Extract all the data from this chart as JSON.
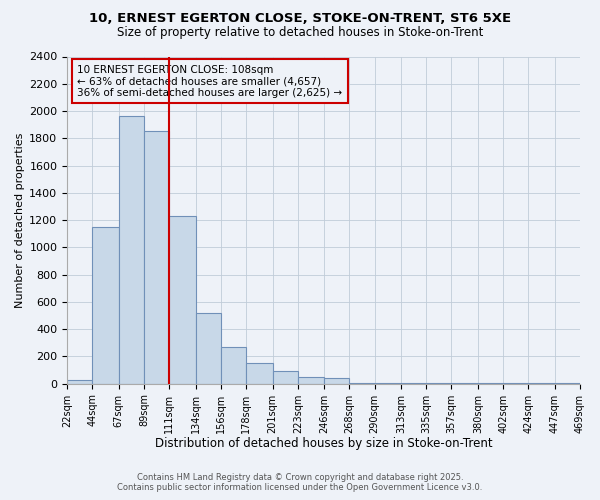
{
  "title1": "10, ERNEST EGERTON CLOSE, STOKE-ON-TRENT, ST6 5XE",
  "title2": "Size of property relative to detached houses in Stoke-on-Trent",
  "xlabel": "Distribution of detached houses by size in Stoke-on-Trent",
  "ylabel": "Number of detached properties",
  "bin_labels": [
    "22sqm",
    "44sqm",
    "67sqm",
    "89sqm",
    "111sqm",
    "134sqm",
    "156sqm",
    "178sqm",
    "201sqm",
    "223sqm",
    "246sqm",
    "268sqm",
    "290sqm",
    "313sqm",
    "335sqm",
    "357sqm",
    "380sqm",
    "402sqm",
    "424sqm",
    "447sqm",
    "469sqm"
  ],
  "bin_edges": [
    22,
    44,
    67,
    89,
    111,
    134,
    156,
    178,
    201,
    223,
    246,
    268,
    290,
    313,
    335,
    357,
    380,
    402,
    424,
    447,
    469
  ],
  "bar_heights": [
    25,
    1150,
    1960,
    1850,
    1230,
    520,
    270,
    150,
    90,
    50,
    40,
    5,
    5,
    5,
    5,
    5,
    5,
    5,
    5,
    5
  ],
  "bar_color": "#c8d8e8",
  "bar_edge_color": "#7090b8",
  "vline_x": 111,
  "vline_color": "#cc0000",
  "ylim": [
    0,
    2400
  ],
  "yticks": [
    0,
    200,
    400,
    600,
    800,
    1000,
    1200,
    1400,
    1600,
    1800,
    2000,
    2200,
    2400
  ],
  "annotation_title": "10 ERNEST EGERTON CLOSE: 108sqm",
  "annotation_line2": "← 63% of detached houses are smaller (4,657)",
  "annotation_line3": "36% of semi-detached houses are larger (2,625) →",
  "annotation_box_color": "#cc0000",
  "footer1": "Contains HM Land Registry data © Crown copyright and database right 2025.",
  "footer2": "Contains public sector information licensed under the Open Government Licence v3.0.",
  "bg_color": "#eef2f8",
  "grid_color": "#c0ccd8",
  "font_family": "DejaVu Sans"
}
